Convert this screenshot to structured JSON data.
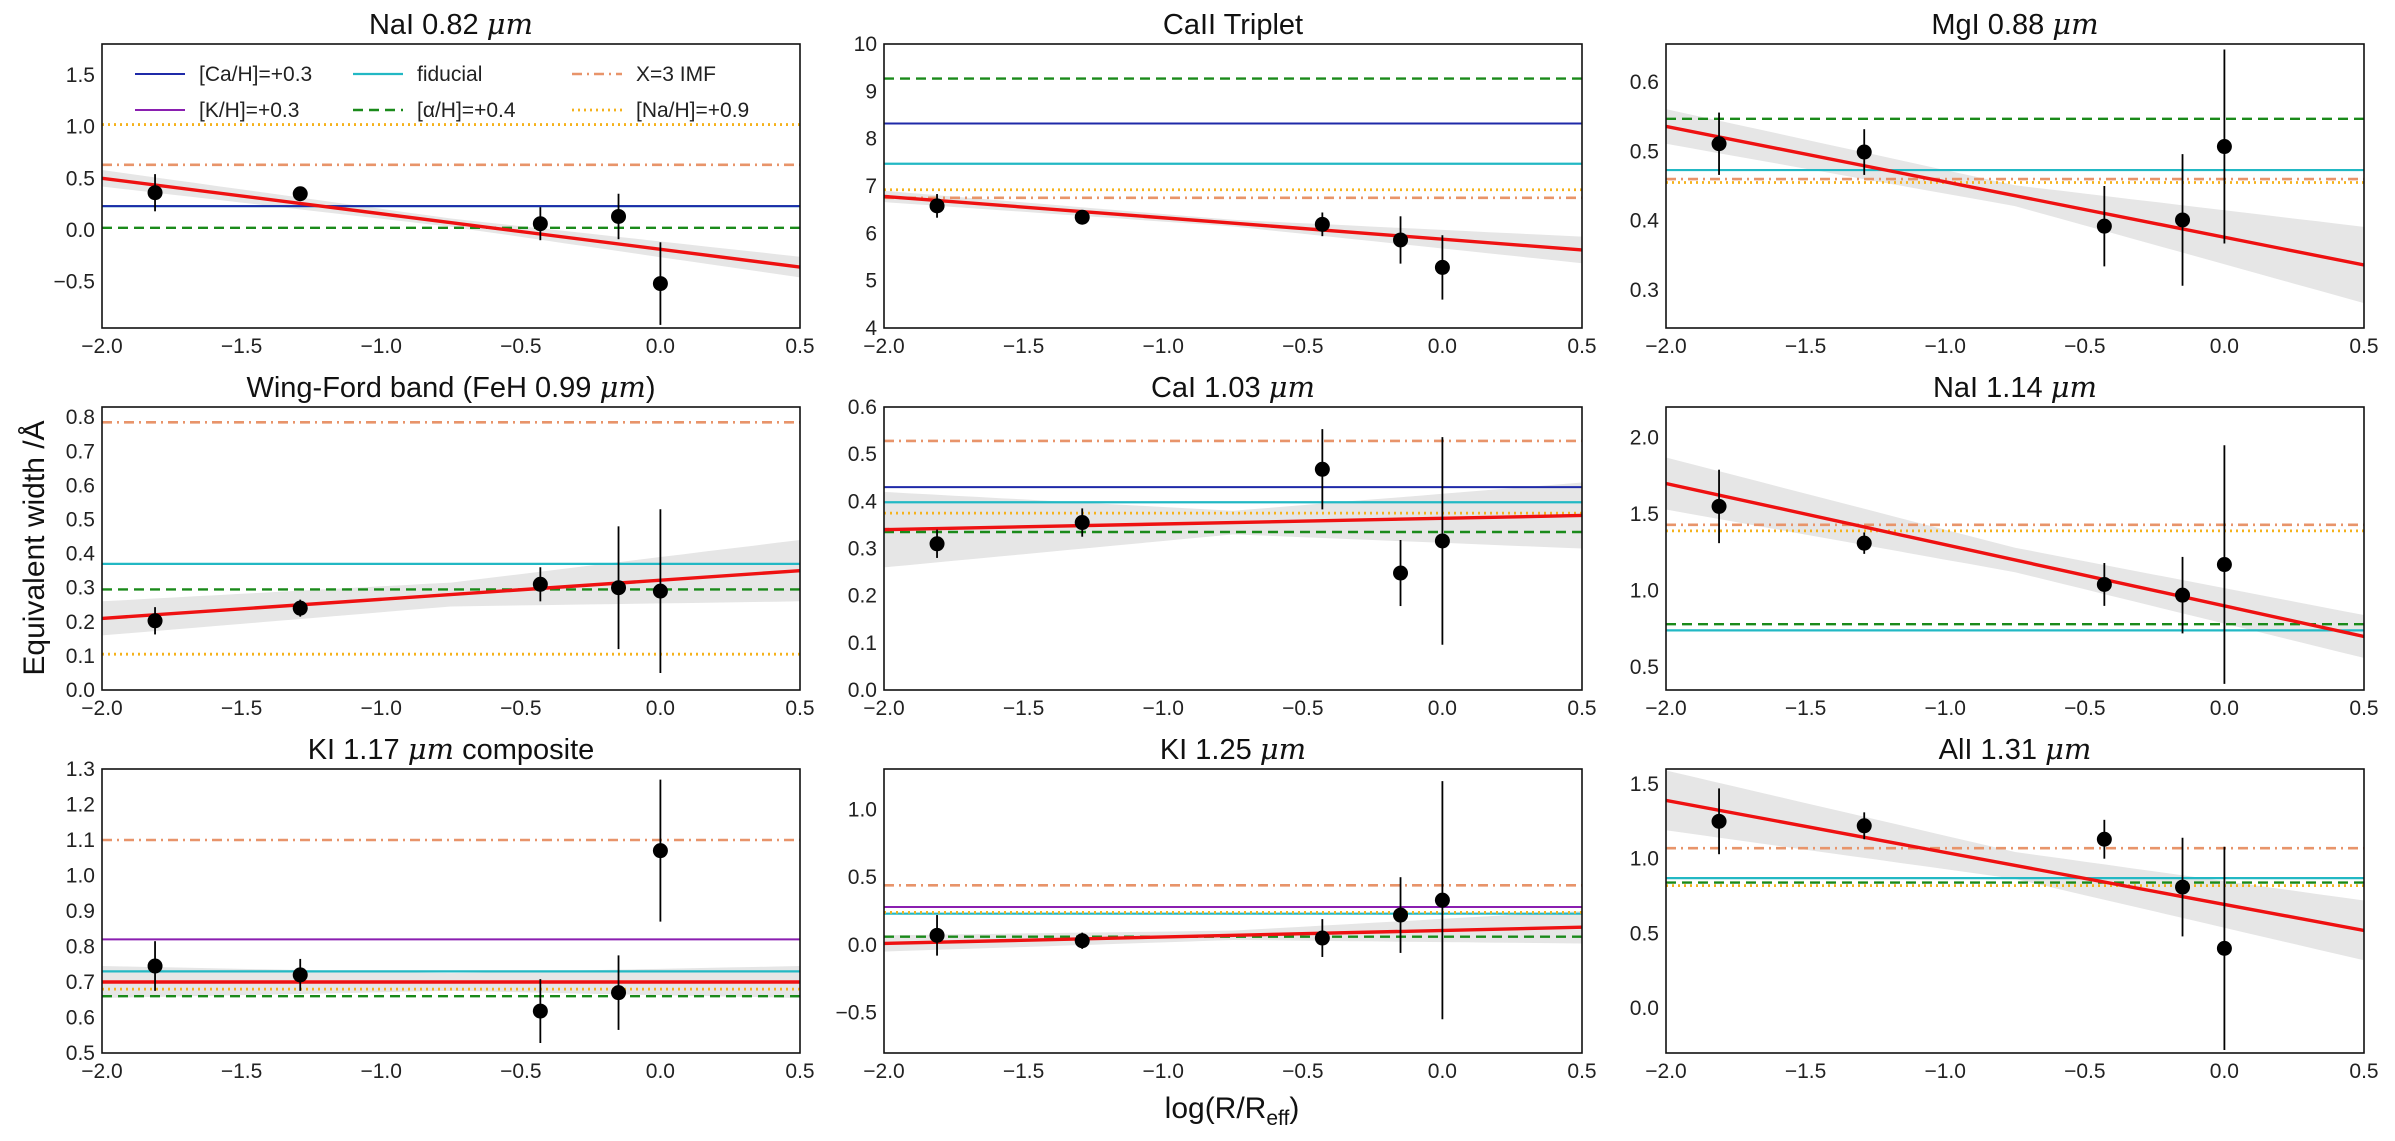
{
  "figure": {
    "ylabel": "Equivalent width /Å",
    "xlabel": "log(R/R",
    "xlabel_sub": "eff",
    "xlabel_close": ")"
  },
  "colors": {
    "ca": "#1f2aa8",
    "k": "#8a1fb0",
    "fiducial": "#22b8c4",
    "alpha": "#1a8a1a",
    "imf": "#e8946a",
    "na": "#f5b21c",
    "fit": "#ee1111",
    "band": "#e6e6e6",
    "points": "#000000"
  },
  "legend": {
    "entries": [
      {
        "label": "[Ca/H]=+0.3",
        "key": "ca",
        "style": "solid"
      },
      {
        "label": "[K/H]=+0.3",
        "key": "k",
        "style": "solid"
      },
      {
        "label": "fiducial",
        "key": "fiducial",
        "style": "solid"
      },
      {
        "label": "[α/H]=+0.4",
        "key": "alpha",
        "style": "dashed"
      },
      {
        "label": "X=3 IMF",
        "key": "imf",
        "style": "dashdot"
      },
      {
        "label": "[Na/H]=+0.9",
        "key": "na",
        "style": "dotted"
      }
    ]
  },
  "chart_data": [
    {
      "type": "scatter",
      "title_prefix": "NaI 0.82 ",
      "title_unit": "μm",
      "title_suffix": "",
      "xlim": [
        -2.0,
        0.5
      ],
      "ylim": [
        -0.95,
        1.8
      ],
      "xticks": [
        "-2.0",
        "-1.5",
        "-1.0",
        "-0.5",
        "0.0",
        "0.5"
      ],
      "yticks": [
        "-0.5",
        "0.0",
        "0.5",
        "1.0",
        "1.5"
      ],
      "points": [
        {
          "x": -1.81,
          "y": 0.36,
          "err": 0.18
        },
        {
          "x": -1.29,
          "y": 0.35,
          "err": 0.06
        },
        {
          "x": -0.43,
          "y": 0.06,
          "err": 0.16
        },
        {
          "x": -0.15,
          "y": 0.13,
          "err": 0.22
        },
        {
          "x": 0.0,
          "y": -0.52,
          "err": 0.4
        }
      ],
      "fit": {
        "y_at_xmin": 0.5,
        "y_at_xmax": -0.36,
        "band_at_xmin": 0.08,
        "band_at_xmid": 0.04,
        "band_at_xmax": 0.1
      },
      "models": [
        {
          "key": "fiducial",
          "y": 0.23
        },
        {
          "key": "ca",
          "y": 0.23
        },
        {
          "key": "alpha",
          "y": 0.02
        },
        {
          "key": "imf",
          "y": 0.63
        },
        {
          "key": "na",
          "y": 1.02
        }
      ]
    },
    {
      "type": "scatter",
      "title_prefix": "CaII Triplet",
      "title_unit": "",
      "title_suffix": "",
      "xlim": [
        -2.0,
        0.5
      ],
      "ylim": [
        4.0,
        10.0
      ],
      "xticks": [
        "-2.0",
        "-1.5",
        "-1.0",
        "-0.5",
        "0.0",
        "0.5"
      ],
      "yticks": [
        "4",
        "5",
        "6",
        "7",
        "8",
        "9",
        "10"
      ],
      "points": [
        {
          "x": -1.81,
          "y": 6.58,
          "err": 0.25
        },
        {
          "x": -1.29,
          "y": 6.34,
          "err": 0.15
        },
        {
          "x": -0.43,
          "y": 6.19,
          "err": 0.25
        },
        {
          "x": -0.15,
          "y": 5.86,
          "err": 0.5
        },
        {
          "x": 0.0,
          "y": 5.28,
          "err": 0.68
        }
      ],
      "fit": {
        "y_at_xmin": 6.78,
        "y_at_xmax": 5.65,
        "band_at_xmin": 0.12,
        "band_at_xmid": 0.07,
        "band_at_xmax": 0.28
      },
      "models": [
        {
          "key": "ca",
          "y": 8.32
        },
        {
          "key": "fiducial",
          "y": 7.47
        },
        {
          "key": "alpha",
          "y": 9.27
        },
        {
          "key": "imf",
          "y": 6.75
        },
        {
          "key": "na",
          "y": 6.92
        }
      ]
    },
    {
      "type": "scatter",
      "title_prefix": "MgI 0.88 ",
      "title_unit": "μm",
      "title_suffix": "",
      "xlim": [
        -2.0,
        0.5
      ],
      "ylim": [
        0.245,
        0.655
      ],
      "xticks": [
        "-2.0",
        "-1.5",
        "-1.0",
        "-0.5",
        "0.0",
        "0.5"
      ],
      "yticks": [
        "0.3",
        "0.4",
        "0.5",
        "0.6"
      ],
      "points": [
        {
          "x": -1.81,
          "y": 0.511,
          "err": 0.045
        },
        {
          "x": -1.29,
          "y": 0.499,
          "err": 0.033
        },
        {
          "x": -0.43,
          "y": 0.392,
          "err": 0.058
        },
        {
          "x": -0.15,
          "y": 0.401,
          "err": 0.095
        },
        {
          "x": 0.0,
          "y": 0.507,
          "err": 0.14
        }
      ],
      "fit": {
        "y_at_xmin": 0.536,
        "y_at_xmax": 0.336,
        "band_at_xmin": 0.025,
        "band_at_xmid": 0.015,
        "band_at_xmax": 0.055
      },
      "models": [
        {
          "key": "fiducial",
          "y": 0.473
        },
        {
          "key": "alpha",
          "y": 0.547
        },
        {
          "key": "imf",
          "y": 0.46
        },
        {
          "key": "na",
          "y": 0.455
        }
      ]
    },
    {
      "type": "scatter",
      "title_prefix": "Wing-Ford band (FeH 0.99 ",
      "title_unit": "μm",
      "title_suffix": ")",
      "xlim": [
        -2.0,
        0.5
      ],
      "ylim": [
        0.0,
        0.83
      ],
      "xticks": [
        "-2.0",
        "-1.5",
        "-1.0",
        "-0.5",
        "0.0",
        "0.5"
      ],
      "yticks": [
        "0.0",
        "0.1",
        "0.2",
        "0.3",
        "0.4",
        "0.5",
        "0.6",
        "0.7",
        "0.8"
      ],
      "points": [
        {
          "x": -1.81,
          "y": 0.203,
          "err": 0.04
        },
        {
          "x": -1.29,
          "y": 0.24,
          "err": 0.025
        },
        {
          "x": -0.43,
          "y": 0.31,
          "err": 0.05
        },
        {
          "x": -0.15,
          "y": 0.3,
          "err": 0.18
        },
        {
          "x": 0.0,
          "y": 0.29,
          "err": 0.24
        }
      ],
      "fit": {
        "y_at_xmin": 0.21,
        "y_at_xmax": 0.35,
        "band_at_xmin": 0.05,
        "band_at_xmid": 0.035,
        "band_at_xmax": 0.09
      },
      "models": [
        {
          "key": "fiducial",
          "y": 0.37
        },
        {
          "key": "alpha",
          "y": 0.295
        },
        {
          "key": "imf",
          "y": 0.785
        },
        {
          "key": "na",
          "y": 0.105
        }
      ]
    },
    {
      "type": "scatter",
      "title_prefix": "CaI 1.03 ",
      "title_unit": "μm",
      "title_suffix": "",
      "xlim": [
        -2.0,
        0.5
      ],
      "ylim": [
        0.0,
        0.6
      ],
      "xticks": [
        "-2.0",
        "-1.5",
        "-1.0",
        "-0.5",
        "0.0",
        "0.5"
      ],
      "yticks": [
        "0.0",
        "0.1",
        "0.2",
        "0.3",
        "0.4",
        "0.5",
        "0.6"
      ],
      "points": [
        {
          "x": -1.81,
          "y": 0.31,
          "err": 0.03
        },
        {
          "x": -1.29,
          "y": 0.355,
          "err": 0.03
        },
        {
          "x": -0.43,
          "y": 0.468,
          "err": 0.085
        },
        {
          "x": -0.15,
          "y": 0.248,
          "err": 0.07
        },
        {
          "x": 0.0,
          "y": 0.316,
          "err": 0.22
        }
      ],
      "fit": {
        "y_at_xmin": 0.34,
        "y_at_xmax": 0.37,
        "band_at_xmin": 0.08,
        "band_at_xmid": 0.025,
        "band_at_xmax": 0.07
      },
      "models": [
        {
          "key": "ca",
          "y": 0.43
        },
        {
          "key": "fiducial",
          "y": 0.398
        },
        {
          "key": "alpha",
          "y": 0.335
        },
        {
          "key": "imf",
          "y": 0.528
        },
        {
          "key": "na",
          "y": 0.375
        }
      ]
    },
    {
      "type": "scatter",
      "title_prefix": "NaI 1.14 ",
      "title_unit": "μm",
      "title_suffix": "",
      "xlim": [
        -2.0,
        0.5
      ],
      "ylim": [
        0.35,
        2.2
      ],
      "xticks": [
        "-2.0",
        "-1.5",
        "-1.0",
        "-0.5",
        "0.0",
        "0.5"
      ],
      "yticks": [
        "0.5",
        "1.0",
        "1.5",
        "2.0"
      ],
      "points": [
        {
          "x": -1.81,
          "y": 1.55,
          "err": 0.24
        },
        {
          "x": -1.29,
          "y": 1.31,
          "err": 0.07
        },
        {
          "x": -0.43,
          "y": 1.04,
          "err": 0.14
        },
        {
          "x": -0.15,
          "y": 0.97,
          "err": 0.25
        },
        {
          "x": 0.0,
          "y": 1.17,
          "err": 0.78
        }
      ],
      "fit": {
        "y_at_xmin": 1.7,
        "y_at_xmax": 0.7,
        "band_at_xmin": 0.17,
        "band_at_xmid": 0.08,
        "band_at_xmax": 0.14
      },
      "models": [
        {
          "key": "fiducial",
          "y": 0.74
        },
        {
          "key": "alpha",
          "y": 0.78
        },
        {
          "key": "imf",
          "y": 1.43
        },
        {
          "key": "na",
          "y": 1.39
        }
      ]
    },
    {
      "type": "scatter",
      "title_prefix": "KI 1.17 ",
      "title_unit": "μm",
      "title_suffix": " composite",
      "xlim": [
        -2.0,
        0.5
      ],
      "ylim": [
        0.5,
        1.3
      ],
      "xticks": [
        "-2.0",
        "-1.5",
        "-1.0",
        "-0.5",
        "0.0",
        "0.5"
      ],
      "yticks": [
        "0.5",
        "0.6",
        "0.7",
        "0.8",
        "0.9",
        "1.0",
        "1.1",
        "1.2",
        "1.3"
      ],
      "points": [
        {
          "x": -1.81,
          "y": 0.745,
          "err": 0.07
        },
        {
          "x": -1.29,
          "y": 0.72,
          "err": 0.045
        },
        {
          "x": -0.43,
          "y": 0.618,
          "err": 0.09
        },
        {
          "x": -0.15,
          "y": 0.67,
          "err": 0.105
        },
        {
          "x": 0.0,
          "y": 1.07,
          "err": 0.2
        }
      ],
      "fit": {
        "y_at_xmin": 0.7,
        "y_at_xmax": 0.7,
        "band_at_xmin": 0.045,
        "band_at_xmid": 0.025,
        "band_at_xmax": 0.045
      },
      "models": [
        {
          "key": "k",
          "y": 0.82
        },
        {
          "key": "fiducial",
          "y": 0.73
        },
        {
          "key": "alpha",
          "y": 0.66
        },
        {
          "key": "imf",
          "y": 1.1
        },
        {
          "key": "na",
          "y": 0.68
        }
      ]
    },
    {
      "type": "scatter",
      "title_prefix": "KI 1.25 ",
      "title_unit": "μm",
      "title_suffix": "",
      "xlim": [
        -2.0,
        0.5
      ],
      "ylim": [
        -0.8,
        1.3
      ],
      "xticks": [
        "-2.0",
        "-1.5",
        "-1.0",
        "-0.5",
        "0.0",
        "0.5"
      ],
      "yticks": [
        "-0.5",
        "0.0",
        "0.5",
        "1.0"
      ],
      "points": [
        {
          "x": -1.81,
          "y": 0.07,
          "err": 0.15
        },
        {
          "x": -1.29,
          "y": 0.03,
          "err": 0.06
        },
        {
          "x": -0.43,
          "y": 0.05,
          "err": 0.14
        },
        {
          "x": -0.15,
          "y": 0.22,
          "err": 0.28
        },
        {
          "x": 0.0,
          "y": 0.33,
          "err": 0.88
        }
      ],
      "fit": {
        "y_at_xmin": 0.01,
        "y_at_xmax": 0.13,
        "band_at_xmin": 0.06,
        "band_at_xmid": 0.035,
        "band_at_xmax": 0.12
      },
      "models": [
        {
          "key": "k",
          "y": 0.28
        },
        {
          "key": "fiducial",
          "y": 0.23
        },
        {
          "key": "alpha",
          "y": 0.06
        },
        {
          "key": "imf",
          "y": 0.44
        },
        {
          "key": "na",
          "y": 0.24
        }
      ]
    },
    {
      "type": "scatter",
      "title_prefix": "AlI 1.31 ",
      "title_unit": "μm",
      "title_suffix": "",
      "xlim": [
        -2.0,
        0.5
      ],
      "ylim": [
        -0.3,
        1.6
      ],
      "xticks": [
        "-2.0",
        "-1.5",
        "-1.0",
        "-0.5",
        "0.0",
        "0.5"
      ],
      "yticks": [
        "0.0",
        "0.5",
        "1.0",
        "1.5"
      ],
      "points": [
        {
          "x": -1.81,
          "y": 1.25,
          "err": 0.22
        },
        {
          "x": -1.29,
          "y": 1.22,
          "err": 0.09
        },
        {
          "x": -0.43,
          "y": 1.13,
          "err": 0.13
        },
        {
          "x": -0.15,
          "y": 0.81,
          "err": 0.33
        },
        {
          "x": 0.0,
          "y": 0.4,
          "err": 0.68
        }
      ],
      "fit": {
        "y_at_xmin": 1.39,
        "y_at_xmax": 0.52,
        "band_at_xmin": 0.2,
        "band_at_xmid": 0.09,
        "band_at_xmax": 0.2
      },
      "models": [
        {
          "key": "fiducial",
          "y": 0.87
        },
        {
          "key": "alpha",
          "y": 0.84
        },
        {
          "key": "imf",
          "y": 1.07
        },
        {
          "key": "na",
          "y": 0.82
        }
      ]
    }
  ]
}
